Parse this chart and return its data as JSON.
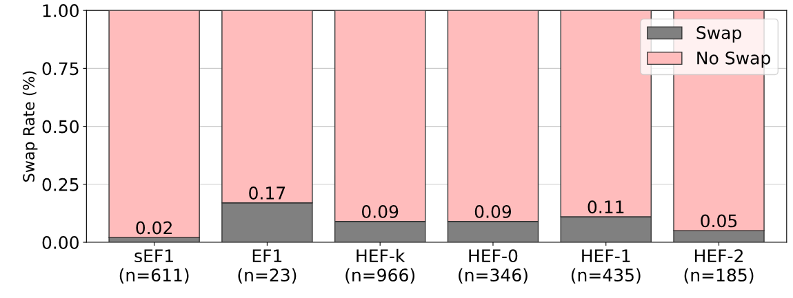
{
  "chart_data": {
    "type": "bar",
    "stacked": true,
    "ylabel": "Swap Rate (%)",
    "categories": [
      "sEF1\n(n=611)",
      "EF1\n(n=23)",
      "HEF-k\n(n=966)",
      "HEF-0\n(n=346)",
      "HEF-1\n(n=435)",
      "HEF-2\n(n=185)"
    ],
    "series": [
      {
        "name": "Swap",
        "color": "#808080",
        "values": [
          0.02,
          0.17,
          0.09,
          0.09,
          0.11,
          0.05
        ],
        "value_labels": [
          "0.02",
          "0.17",
          "0.09",
          "0.09",
          "0.11",
          "0.05"
        ]
      },
      {
        "name": "No Swap",
        "color": "#ffbcbc",
        "values": [
          0.98,
          0.83,
          0.91,
          0.91,
          0.89,
          0.95
        ]
      }
    ],
    "ylim": [
      0,
      1
    ],
    "yticks": [
      {
        "value": 0,
        "label": "0.00"
      },
      {
        "value": 0.25,
        "label": "0.25"
      },
      {
        "value": 0.5,
        "label": "0.50"
      },
      {
        "value": 0.75,
        "label": "0.75"
      },
      {
        "value": 1,
        "label": "1.00"
      }
    ],
    "grid": "y",
    "legend": "top right"
  }
}
